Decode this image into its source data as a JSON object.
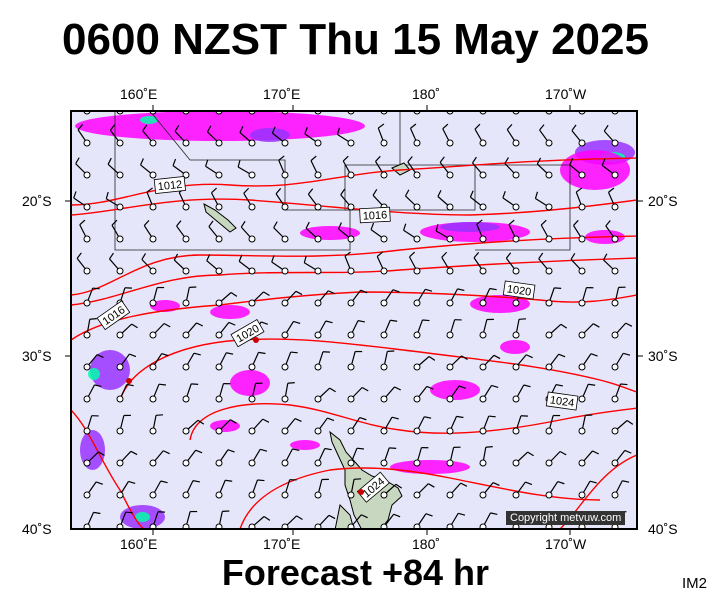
{
  "title": "0600 NZST Thu 15 May 2025",
  "footer": "Forecast +84 hr",
  "image_code": "IM2",
  "copyright": "Copyright metvuw.com",
  "longitude_labels": [
    "160˚E",
    "170˚E",
    "180˚",
    "170˚W"
  ],
  "latitude_labels": [
    "20˚S",
    "30˚S",
    "40˚S"
  ],
  "isobar_labels": [
    "1012",
    "1016",
    "1016",
    "1020",
    "1020",
    "1024",
    "1024"
  ],
  "colors": {
    "ocean": "#e6e6fa",
    "isobar": "#ff0000",
    "rain_light": "#ff00ff",
    "rain_medium": "#9933ff",
    "rain_heavy": "#3333ff",
    "rain_extreme": "#00ffaa",
    "land": "#c8d8c0"
  }
}
